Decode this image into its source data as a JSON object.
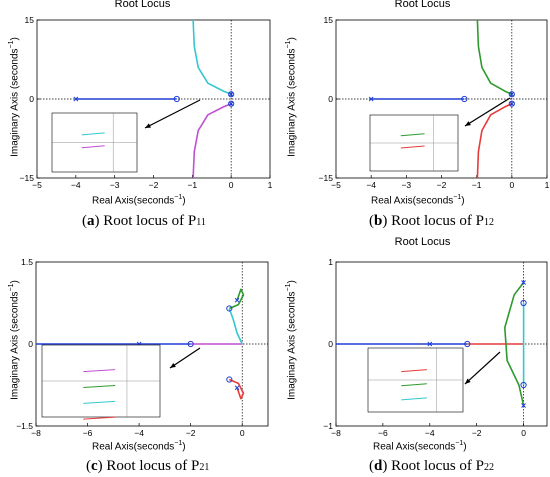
{
  "shared": {
    "plot_title": "Root Locus",
    "xlabel": "Real Axis(seconds",
    "xlabel_sup": "−1",
    "ylabel": "Imaginary Axis (seconds",
    "ylabel_sup": "−1",
    "ylabel_close": ")",
    "xlabel_close": ")"
  },
  "captions": [
    {
      "letter": "a",
      "text": "Root locus of P",
      "sub": "11"
    },
    {
      "letter": "b",
      "text": "Root locus of P",
      "sub": "12"
    },
    {
      "letter": "c",
      "text": "Root locus of P",
      "sub": "21"
    },
    {
      "letter": "d",
      "text": "Root locus of P",
      "sub": "22"
    }
  ],
  "chart_data": [
    {
      "type": "line",
      "title": "Root Locus",
      "xlabel": "Real Axis(seconds−1)",
      "ylabel": "Imaginary Axis (seconds−1)",
      "xlim": [
        -5,
        1
      ],
      "ylim": [
        -15,
        15
      ],
      "xticks": [
        -5,
        -4,
        -3,
        -2,
        -1,
        0,
        1
      ],
      "yticks": [
        -15,
        0,
        15
      ],
      "poles": [
        [
          -4,
          0
        ],
        [
          0,
          0.9
        ],
        [
          0,
          -0.9
        ]
      ],
      "zeros": [
        [
          -1.4,
          0
        ],
        [
          0,
          0.9
        ],
        [
          0,
          -0.9
        ]
      ],
      "series": [
        {
          "color": "#1f3fd6",
          "x": [
            -4,
            -3,
            -2,
            -1.4
          ],
          "y": [
            0,
            0,
            0,
            0
          ]
        },
        {
          "color": "#35c7cf",
          "x": [
            0,
            -0.2,
            -0.6,
            -0.85,
            -0.95,
            -0.98
          ],
          "y": [
            0.9,
            1.5,
            3,
            6,
            10,
            15
          ]
        },
        {
          "color": "#c04fd4",
          "x": [
            0,
            -0.2,
            -0.6,
            -0.85,
            -0.95,
            -0.98
          ],
          "y": [
            -0.9,
            -1.5,
            -3,
            -6,
            -10,
            -15
          ]
        }
      ]
    },
    {
      "type": "line",
      "title": "Root Locus",
      "xlabel": "Real Axis(seconds−1)",
      "ylabel": "Imaginary Axis (seconds−1)",
      "xlim": [
        -5,
        1
      ],
      "ylim": [
        -15,
        15
      ],
      "xticks": [
        -5,
        -4,
        -3,
        -2,
        -1,
        0,
        1
      ],
      "yticks": [
        -15,
        0,
        15
      ],
      "poles": [
        [
          -4,
          0
        ],
        [
          0,
          0.9
        ],
        [
          0,
          -0.9
        ]
      ],
      "zeros": [
        [
          -1.35,
          0
        ],
        [
          0,
          0.9
        ],
        [
          0,
          -0.9
        ]
      ],
      "series": [
        {
          "color": "#1f3fd6",
          "x": [
            -4,
            -3,
            -2,
            -1.35
          ],
          "y": [
            0,
            0,
            0,
            0
          ]
        },
        {
          "color": "#2e9a2e",
          "x": [
            0,
            -0.2,
            -0.6,
            -0.85,
            -0.95,
            -0.98
          ],
          "y": [
            0.9,
            1.5,
            3,
            6,
            10,
            15
          ]
        },
        {
          "color": "#e83a3a",
          "x": [
            0,
            -0.2,
            -0.6,
            -0.85,
            -0.95,
            -0.98
          ],
          "y": [
            -0.9,
            -1.5,
            -3,
            -6,
            -10,
            -15
          ]
        }
      ]
    },
    {
      "type": "line",
      "title": "Root Locus",
      "xlabel": "Real Axis(seconds−1)",
      "ylabel": "Imaginary Axis (seconds−1)",
      "xlim": [
        -8,
        1
      ],
      "ylim": [
        -1.5,
        1.5
      ],
      "xticks": [
        -8,
        -6,
        -4,
        -2,
        0
      ],
      "yticks": [
        -1.5,
        0,
        1.5
      ],
      "poles": [
        [
          -4,
          0
        ],
        [
          -0.2,
          0.8
        ],
        [
          -0.2,
          -0.8
        ]
      ],
      "zeros": [
        [
          -2,
          0
        ],
        [
          -0.5,
          0.65
        ],
        [
          -0.5,
          -0.65
        ]
      ],
      "series": [
        {
          "color": "#1f3fd6",
          "x": [
            -8,
            -4,
            -2
          ],
          "y": [
            0,
            0,
            0
          ]
        },
        {
          "color": "#c04fd4",
          "x": [
            -2,
            -1,
            -0.3,
            0
          ],
          "y": [
            0,
            0,
            0,
            0
          ]
        },
        {
          "color": "#2e9a2e",
          "x": [
            -0.2,
            -0.05,
            0.05,
            -0.15,
            -0.5
          ],
          "y": [
            0.8,
            1.0,
            0.9,
            0.72,
            0.65
          ]
        },
        {
          "color": "#35c7cf",
          "x": [
            0,
            -0.2,
            -0.35,
            -0.5
          ],
          "y": [
            0,
            0.2,
            0.45,
            0.65
          ]
        },
        {
          "color": "#e83a3a",
          "x": [
            -0.2,
            -0.05,
            0.05,
            -0.15,
            -0.5
          ],
          "y": [
            -0.8,
            -1.0,
            -0.9,
            -0.72,
            -0.65
          ]
        }
      ]
    },
    {
      "type": "line",
      "title": "Root Locus",
      "xlabel": "Real Axis(seconds−1)",
      "ylabel": "Imaginary Axis (seconds−1)",
      "xlim": [
        -8,
        1
      ],
      "ylim": [
        -1,
        1
      ],
      "xticks": [
        -8,
        -6,
        -4,
        -2,
        0
      ],
      "yticks": [
        -1,
        0,
        1
      ],
      "poles": [
        [
          -4,
          0
        ],
        [
          0,
          0.75
        ],
        [
          0,
          -0.75
        ]
      ],
      "zeros": [
        [
          -2.4,
          0
        ],
        [
          0,
          0.5
        ],
        [
          0,
          -0.5
        ]
      ],
      "series": [
        {
          "color": "#1f3fd6",
          "x": [
            -8,
            -4,
            -2.4
          ],
          "y": [
            0,
            0,
            0
          ]
        },
        {
          "color": "#e83a3a",
          "x": [
            -2.4,
            -1.5,
            -0.5,
            0
          ],
          "y": [
            0,
            0,
            0,
            0
          ]
        },
        {
          "color": "#2e9a2e",
          "x": [
            0,
            -0.4,
            -0.8,
            -0.7,
            -0.2,
            0
          ],
          "y": [
            0.75,
            0.6,
            0.2,
            -0.2,
            -0.5,
            -0.75
          ]
        },
        {
          "color": "#35c7cf",
          "x": [
            0,
            0
          ],
          "y": [
            0.5,
            -0.5
          ]
        }
      ]
    }
  ]
}
